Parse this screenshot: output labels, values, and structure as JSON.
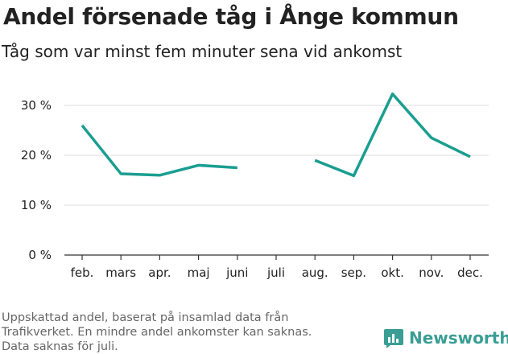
{
  "header": {
    "title": "Andel försenade tåg i Ånge kommun",
    "subtitle": "Tåg som var minst fem minuter sena vid ankomst"
  },
  "footer": {
    "lines": [
      "Uppskattad andel, baserat på insamlad data från",
      "Trafikverket. En mindre andel ankomster kan saknas.",
      "Data saknas för juli."
    ]
  },
  "brand": {
    "name": "Newsworthy",
    "icon": "newsworthy-logo-icon"
  },
  "colors": {
    "line": "#1a9e91",
    "grid": "#dddddd",
    "axis": "#333333",
    "brand": "#3a9e94"
  },
  "chart_data": {
    "type": "line",
    "title": "",
    "xlabel": "",
    "ylabel": "",
    "categories": [
      "feb.",
      "mars",
      "apr.",
      "maj",
      "juni",
      "juli",
      "aug.",
      "sep.",
      "okt.",
      "nov.",
      "dec."
    ],
    "series": [
      {
        "values": [
          26,
          16.3,
          16,
          18,
          17.5,
          null,
          19,
          15.9,
          32.3,
          23.5,
          19.7
        ]
      }
    ],
    "yticks": [
      0,
      10,
      20,
      30
    ],
    "ytick_labels": [
      "0 %",
      "10 %",
      "20 %",
      "30 %"
    ],
    "ylim": [
      0,
      35
    ],
    "grid": true,
    "legend": "none"
  }
}
